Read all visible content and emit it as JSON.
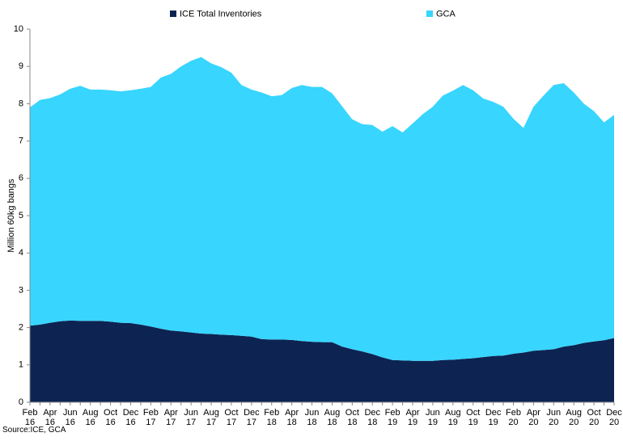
{
  "chart_data": {
    "type": "stacked_area",
    "ylabel": "Million 60kg bangs",
    "source": "Source:ICE, GCA",
    "categories": [
      "Feb 16",
      null,
      "Apr 16",
      null,
      "Jun 16",
      null,
      "Aug 16",
      null,
      "Oct 16",
      null,
      "Dec 16",
      null,
      "Feb 17",
      null,
      "Apr 17",
      null,
      "Jun 17",
      null,
      "Aug 17",
      null,
      "Oct 17",
      null,
      "Dec 17",
      null,
      "Feb 18",
      null,
      "Apr 18",
      null,
      "Jun 18",
      null,
      "Aug 18",
      null,
      "Oct 18",
      null,
      "Dec 18",
      null,
      "Feb 19",
      null,
      "Apr 19",
      null,
      "Jun 19",
      null,
      "Aug 19",
      null,
      "Oct 19",
      null,
      "Dec 19",
      null,
      "Feb 20",
      null,
      "Apr 20",
      null,
      "Jun 20",
      null,
      "Aug 20",
      null,
      "Oct 20",
      null,
      "Dec 20"
    ],
    "series": [
      {
        "name": "ICE Total Inventories",
        "color": "#0d2452",
        "values": [
          2.05,
          2.08,
          2.13,
          2.17,
          2.19,
          2.18,
          2.18,
          2.18,
          2.16,
          2.13,
          2.12,
          2.08,
          2.03,
          1.97,
          1.92,
          1.9,
          1.87,
          1.84,
          1.83,
          1.81,
          1.8,
          1.78,
          1.76,
          1.69,
          1.68,
          1.68,
          1.67,
          1.64,
          1.62,
          1.61,
          1.61,
          1.49,
          1.42,
          1.36,
          1.29,
          1.2,
          1.13,
          1.12,
          1.11,
          1.11,
          1.11,
          1.13,
          1.14,
          1.16,
          1.18,
          1.21,
          1.24,
          1.25,
          1.3,
          1.33,
          1.38,
          1.4,
          1.42,
          1.49,
          1.53,
          1.59,
          1.63,
          1.66,
          1.72
        ]
      },
      {
        "name": "GCA",
        "color": "#38d5fe",
        "values": [
          5.85,
          6.02,
          6.02,
          6.08,
          6.21,
          6.3,
          6.2,
          6.2,
          6.2,
          6.2,
          6.24,
          6.32,
          6.42,
          6.73,
          6.88,
          7.1,
          7.28,
          7.41,
          7.25,
          7.17,
          7.03,
          6.72,
          6.62,
          6.61,
          6.52,
          6.55,
          6.75,
          6.86,
          6.83,
          6.84,
          6.67,
          6.44,
          6.16,
          6.09,
          6.14,
          6.05,
          6.27,
          6.11,
          6.36,
          6.61,
          6.81,
          7.09,
          7.21,
          7.34,
          7.18,
          6.93,
          6.81,
          6.67,
          6.3,
          6.02,
          6.54,
          6.82,
          7.08,
          7.06,
          6.77,
          6.41,
          6.17,
          5.84,
          5.98
        ]
      }
    ],
    "ylim": [
      0,
      10
    ],
    "yticks": [
      0,
      1,
      2,
      3,
      4,
      5,
      6,
      7,
      8,
      9,
      10
    ],
    "grid": false
  }
}
